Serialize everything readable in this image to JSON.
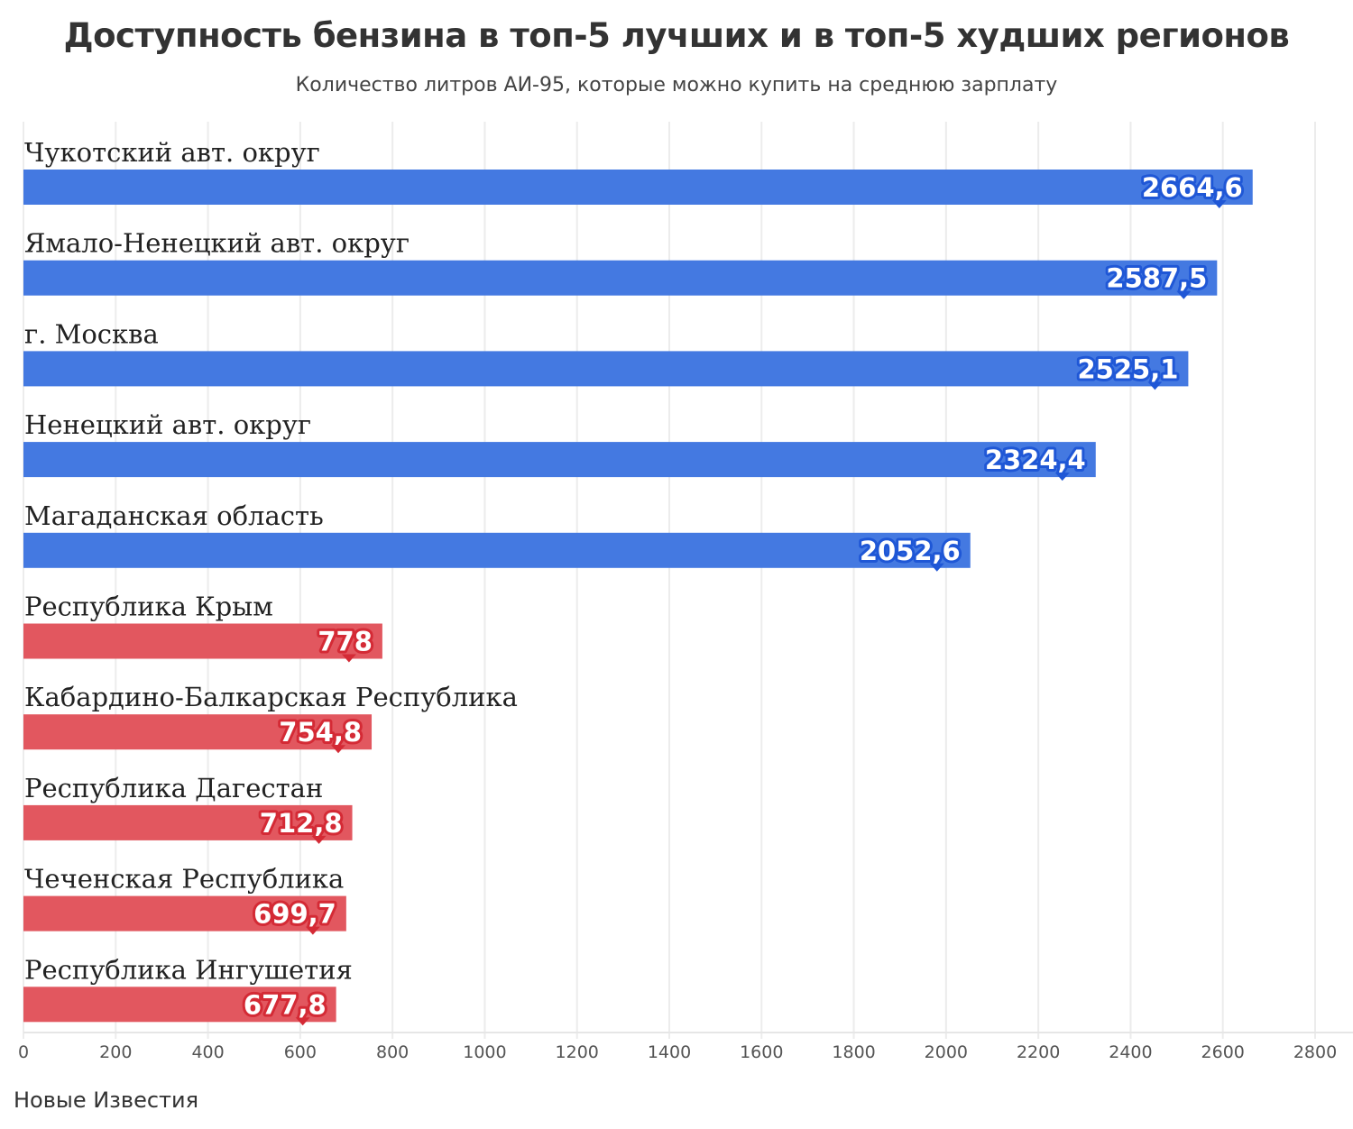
{
  "chart_data": {
    "type": "bar",
    "orientation": "horizontal",
    "title": "Доступность бензина в топ-5 лучших и в топ-5 худших регионов",
    "subtitle": "Количество литров АИ-95, которые можно купить на среднюю зарплату",
    "source": "Новые Известия",
    "categories": [
      "Чукотский авт. округ",
      "Ямало-Ненецкий авт. округ",
      "г. Москва",
      "Ненецкий авт. округ",
      "Магаданская область",
      "Республика Крым",
      "Кабардино-Балкарская Республика",
      "Республика Дагестан",
      "Чеченская Республика",
      "Республика Ингушетия"
    ],
    "values": [
      2664.6,
      2587.5,
      2525.1,
      2324.4,
      2052.6,
      778,
      754.8,
      712.8,
      699.7,
      677.8
    ],
    "value_labels": [
      "2664,6",
      "2587,5",
      "2525,1",
      "2324,4",
      "2052,6",
      "778",
      "754,8",
      "712,8",
      "699,7",
      "677,8"
    ],
    "groups": [
      "best",
      "best",
      "best",
      "best",
      "best",
      "worst",
      "worst",
      "worst",
      "worst",
      "worst"
    ],
    "colors": {
      "best": "#4479e1",
      "best_label": "#1f57d6",
      "worst": "#e2575f",
      "worst_label": "#d42a35"
    },
    "xlim": [
      0,
      2800
    ],
    "xticks": [
      0,
      200,
      400,
      600,
      800,
      1000,
      1200,
      1400,
      1600,
      1800,
      2000,
      2200,
      2400,
      2600,
      2800
    ],
    "grid": "vertical"
  }
}
